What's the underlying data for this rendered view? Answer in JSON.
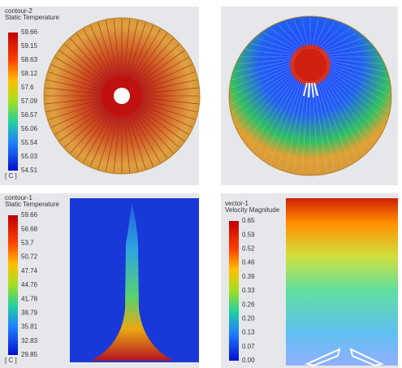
{
  "panels": [
    {
      "title": "contour-2",
      "subtitle": "Static Temperature",
      "ticks": [
        "59.66",
        "59.15",
        "58.63",
        "58.12",
        "57.6",
        "57.09",
        "56.57",
        "56.06",
        "55.54",
        "55.03",
        "54.51"
      ],
      "unit": "[ C ]"
    },
    {
      "title": "contour-1",
      "subtitle": "Static Temperature",
      "ticks": [
        "59.66",
        "56.68",
        "53.7",
        "50.72",
        "47.74",
        "44.76",
        "41.78",
        "38.79",
        "35.81",
        "32.83",
        "29.85"
      ],
      "unit": "[ C ]"
    },
    {
      "title": "vector-1",
      "subtitle": "Velocity Magnitude",
      "ticks": [
        "0.65",
        "0.59",
        "0.52",
        "0.46",
        "0.39",
        "0.33",
        "0.26",
        "0.20",
        "0.13",
        "0.07",
        "0.00"
      ]
    }
  ]
}
